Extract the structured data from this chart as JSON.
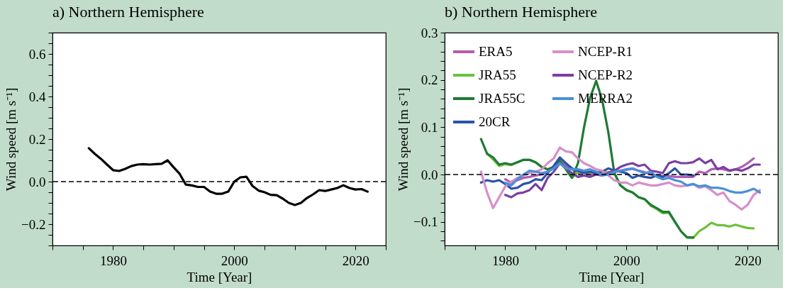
{
  "chart_data": [
    {
      "type": "line",
      "title": "a) Northern Hemisphere",
      "xlabel": "Time [Year]",
      "ylabel": "Wind speed [m s⁻¹]",
      "xlim": [
        1970,
        2025
      ],
      "xticks": [
        {
          "value": 1970,
          "label": null
        },
        {
          "value": 1975,
          "label": null
        },
        1980,
        {
          "value": 1985,
          "label": null
        },
        {
          "value": 1990,
          "label": null
        },
        {
          "value": 1995,
          "label": null
        },
        2000,
        {
          "value": 2005,
          "label": null
        },
        {
          "value": 2010,
          "label": null
        },
        {
          "value": 2015,
          "label": null
        },
        2020,
        {
          "value": 2025,
          "label": null
        }
      ],
      "ylim": [
        -0.3,
        0.7
      ],
      "yticks": [
        {
          "value": -0.3,
          "label": null
        },
        {
          "value": -0.25,
          "label": null
        },
        -0.2,
        {
          "value": -0.15,
          "label": null
        },
        {
          "value": -0.1,
          "label": null
        },
        {
          "value": -0.05,
          "label": null
        },
        {
          "value": 0,
          "label": "0.0"
        },
        {
          "value": 0.05,
          "label": null
        },
        {
          "value": 0.1,
          "label": null
        },
        {
          "value": 0.15,
          "label": null
        },
        0.2,
        {
          "value": 0.25,
          "label": null
        },
        {
          "value": 0.3,
          "label": null
        },
        {
          "value": 0.35,
          "label": null
        },
        0.4,
        {
          "value": 0.45,
          "label": null
        },
        {
          "value": 0.5,
          "label": null
        },
        {
          "value": 0.55,
          "label": null
        },
        0.6,
        {
          "value": 0.65,
          "label": null
        },
        {
          "value": 0.7,
          "label": null
        }
      ],
      "x": [
        1976,
        1977,
        1978,
        1979,
        1980,
        1981,
        1982,
        1983,
        1984,
        1985,
        1986,
        1987,
        1988,
        1989,
        1990,
        1991,
        1992,
        1993,
        1994,
        1995,
        1996,
        1997,
        1998,
        1999,
        2000,
        2001,
        2002,
        2003,
        2004,
        2005,
        2006,
        2007,
        2008,
        2009,
        2010,
        2011,
        2012,
        2013,
        2014,
        2015,
        2016,
        2017,
        2018,
        2019,
        2020,
        2021,
        2022
      ],
      "series": [
        {
          "color": "#000000",
          "values": [
            0.157,
            0.13,
            0.107,
            0.08,
            0.054,
            0.05,
            0.06,
            0.073,
            0.08,
            0.082,
            0.08,
            0.082,
            0.084,
            0.1,
            0.067,
            0.036,
            -0.014,
            -0.018,
            -0.025,
            -0.025,
            -0.047,
            -0.057,
            -0.057,
            -0.047,
            0.0,
            0.02,
            0.023,
            -0.02,
            -0.042,
            -0.05,
            -0.062,
            -0.064,
            -0.08,
            -0.1,
            -0.11,
            -0.1,
            -0.077,
            -0.06,
            -0.04,
            -0.044,
            -0.037,
            -0.03,
            -0.017,
            -0.03,
            -0.037,
            -0.035,
            -0.047
          ]
        }
      ],
      "ref_lines": [
        {
          "axis": "y",
          "value": 0,
          "color": "#000000",
          "line_style": "dashed"
        }
      ],
      "grid": false,
      "legend": false,
      "line_style": "solid"
    },
    {
      "type": "line",
      "title": "b) Northern Hemisphere",
      "xlabel": "Time [Year]",
      "ylabel": "Wind speed [m s⁻¹]",
      "xlim": [
        1970,
        2025
      ],
      "xticks": [
        {
          "value": 1970,
          "label": null
        },
        {
          "value": 1975,
          "label": null
        },
        1980,
        {
          "value": 1985,
          "label": null
        },
        {
          "value": 1990,
          "label": null
        },
        {
          "value": 1995,
          "label": null
        },
        2000,
        {
          "value": 2005,
          "label": null
        },
        {
          "value": 2010,
          "label": null
        },
        {
          "value": 2015,
          "label": null
        },
        2020,
        {
          "value": 2025,
          "label": null
        }
      ],
      "ylim": [
        -0.15,
        0.3
      ],
      "yticks": [
        {
          "value": -0.14,
          "label": null
        },
        {
          "value": -0.12,
          "label": null
        },
        -0.1,
        {
          "value": -0.08,
          "label": null
        },
        {
          "value": -0.06,
          "label": null
        },
        {
          "value": -0.04,
          "label": null
        },
        {
          "value": -0.02,
          "label": null
        },
        {
          "value": 0,
          "label": "0.0"
        },
        {
          "value": 0.02,
          "label": null
        },
        {
          "value": 0.04,
          "label": null
        },
        {
          "value": 0.06,
          "label": null
        },
        {
          "value": 0.08,
          "label": null
        },
        0.1,
        {
          "value": 0.12,
          "label": null
        },
        {
          "value": 0.14,
          "label": null
        },
        {
          "value": 0.16,
          "label": null
        },
        {
          "value": 0.18,
          "label": null
        },
        0.2,
        {
          "value": 0.22,
          "label": null
        },
        {
          "value": 0.24,
          "label": null
        },
        {
          "value": 0.26,
          "label": null
        },
        {
          "value": 0.28,
          "label": null
        },
        0.3
      ],
      "series": [
        {
          "name": "ERA5",
          "color": "#b35cb0",
          "x": [
            1980,
            1981,
            1982,
            1983,
            1984,
            1985,
            1986,
            1987,
            1988,
            1989,
            1990,
            1991,
            1992,
            1993,
            1994,
            1995,
            1996,
            1997,
            1998,
            1999,
            2000,
            2001,
            2002,
            2003,
            2004,
            2005,
            2006,
            2007,
            2008,
            2009,
            2010,
            2011,
            2012,
            2013,
            2014,
            2015,
            2016,
            2017,
            2018,
            2019,
            2020,
            2021
          ],
          "values": [
            -0.01,
            -0.017,
            -0.012,
            -0.007,
            -0.005,
            -0.002,
            0.0,
            0.006,
            0.016,
            0.029,
            0.018,
            0.011,
            0.003,
            0.005,
            0.0,
            0.002,
            0.0,
            0.005,
            0.005,
            0.008,
            0.01,
            0.012,
            0.008,
            0.005,
            0.0,
            -0.002,
            -0.003,
            -0.003,
            -0.005,
            -0.005,
            -0.005,
            -0.005,
            0.006,
            0.003,
            0.011,
            0.013,
            0.011,
            0.008,
            0.011,
            0.016,
            0.024,
            0.034
          ]
        },
        {
          "name": "JRA55",
          "color": "#6cc13a",
          "x": [
            1977,
            1978,
            1979,
            1980,
            1981,
            1982,
            1983,
            1984,
            1985,
            1986,
            1987,
            1988,
            1989,
            1990,
            1991,
            1992,
            1993,
            1994,
            1995,
            1996,
            1997,
            1998,
            1999,
            2000,
            2001,
            2002,
            2003,
            2004,
            2005,
            2006,
            2007,
            2008,
            2009,
            2010,
            2011,
            2012,
            2013,
            2014,
            2015,
            2016,
            2017,
            2018,
            2019,
            2020,
            2021
          ],
          "values": [
            0.044,
            0.032,
            0.018,
            0.022,
            0.02,
            0.026,
            0.031,
            0.031,
            0.026,
            0.016,
            0.011,
            0.016,
            0.029,
            0.011,
            -0.007,
            0.005,
            0.006,
            0.004,
            0.005,
            0.006,
            0.004,
            0.003,
            -0.023,
            -0.033,
            -0.038,
            -0.048,
            -0.052,
            -0.066,
            -0.073,
            -0.082,
            -0.081,
            -0.1,
            -0.12,
            -0.133,
            -0.134,
            -0.12,
            -0.112,
            -0.102,
            -0.107,
            -0.107,
            -0.11,
            -0.106,
            -0.11,
            -0.113,
            -0.114
          ]
        },
        {
          "name": "JRA55C",
          "color": "#1e7a35",
          "x": [
            1976,
            1977,
            1978,
            1979,
            1980,
            1981,
            1982,
            1983,
            1984,
            1985,
            1986,
            1987,
            1988,
            1989,
            1990,
            1991,
            1992,
            1993,
            1994,
            1995,
            1996,
            1997,
            1998,
            1999,
            2000,
            2001,
            2002,
            2003,
            2004,
            2005,
            2006,
            2007,
            2008,
            2009,
            2010,
            2011
          ],
          "values": [
            0.075,
            0.044,
            0.036,
            0.021,
            0.024,
            0.021,
            0.026,
            0.031,
            0.031,
            0.026,
            0.016,
            0.011,
            0.016,
            0.029,
            0.011,
            -0.007,
            0.024,
            0.1,
            0.162,
            0.198,
            0.157,
            0.09,
            0.003,
            -0.023,
            -0.033,
            -0.038,
            -0.048,
            -0.052,
            -0.064,
            -0.071,
            -0.079,
            -0.079,
            -0.1,
            -0.12,
            -0.133,
            -0.133
          ]
        },
        {
          "name": "20CR",
          "color": "#2a52a8",
          "x": [
            1976,
            1977,
            1978,
            1979,
            1980,
            1981,
            1982,
            1983,
            1984,
            1985,
            1986,
            1987,
            1988,
            1989,
            1990,
            1991,
            1992,
            1993,
            1994,
            1995,
            1996,
            1997,
            1998,
            1999,
            2000,
            2001,
            2002,
            2003,
            2004,
            2005,
            2006,
            2007,
            2008,
            2009,
            2010,
            2011
          ],
          "values": [
            -0.017,
            -0.012,
            -0.015,
            -0.012,
            -0.02,
            -0.03,
            -0.028,
            -0.02,
            -0.017,
            -0.01,
            -0.012,
            0.003,
            0.018,
            0.036,
            0.024,
            0.013,
            0.008,
            0.003,
            0.006,
            0.003,
            0.006,
            0.013,
            0.008,
            0.006,
            0.003,
            -0.007,
            -0.002,
            -0.005,
            -0.007,
            -0.002,
            -0.005,
            0.003,
            0.013,
            0.0,
            0.0,
            -0.002
          ]
        },
        {
          "name": "NCEP-R1",
          "color": "#d68fc9",
          "x": [
            1976,
            1977,
            1978,
            1979,
            1980,
            1981,
            1982,
            1983,
            1984,
            1985,
            1986,
            1987,
            1988,
            1989,
            1990,
            1991,
            1992,
            1993,
            1994,
            1995,
            1996,
            1997,
            1998,
            1999,
            2000,
            2001,
            2002,
            2003,
            2004,
            2005,
            2006,
            2007,
            2008,
            2009,
            2010,
            2011,
            2012,
            2013,
            2014,
            2015,
            2016,
            2017,
            2018,
            2019,
            2020,
            2021,
            2022
          ],
          "values": [
            0.006,
            -0.038,
            -0.071,
            -0.048,
            -0.025,
            -0.015,
            -0.007,
            -0.002,
            0.003,
            0.006,
            0.011,
            0.024,
            0.034,
            0.057,
            0.049,
            0.047,
            0.034,
            0.024,
            0.018,
            0.011,
            0.008,
            -0.002,
            -0.012,
            -0.017,
            -0.017,
            -0.023,
            -0.017,
            -0.02,
            -0.023,
            -0.023,
            -0.02,
            -0.017,
            -0.023,
            -0.025,
            -0.023,
            -0.02,
            -0.028,
            -0.025,
            -0.033,
            -0.043,
            -0.038,
            -0.056,
            -0.064,
            -0.074,
            -0.064,
            -0.043,
            -0.033
          ]
        },
        {
          "name": "NCEP-R2",
          "color": "#7b3fa3",
          "x": [
            1980,
            1981,
            1982,
            1983,
            1984,
            1985,
            1986,
            1987,
            1988,
            1989,
            1990,
            1991,
            1992,
            1993,
            1994,
            1995,
            1996,
            1997,
            1998,
            1999,
            2000,
            2001,
            2002,
            2003,
            2004,
            2005,
            2006,
            2007,
            2008,
            2009,
            2010,
            2011,
            2012,
            2013,
            2014,
            2015,
            2016,
            2017,
            2018,
            2019,
            2020,
            2021,
            2022
          ],
          "values": [
            -0.043,
            -0.048,
            -0.04,
            -0.038,
            -0.033,
            -0.02,
            -0.033,
            -0.007,
            0.006,
            0.024,
            0.013,
            0.003,
            -0.005,
            -0.002,
            -0.005,
            0.0,
            -0.002,
            0.003,
            0.008,
            0.016,
            0.021,
            0.024,
            0.018,
            0.021,
            0.008,
            0.006,
            0.003,
            0.024,
            0.028,
            0.024,
            0.024,
            0.026,
            0.034,
            0.024,
            0.031,
            0.011,
            0.016,
            0.008,
            0.011,
            0.008,
            0.013,
            0.021,
            0.021
          ]
        },
        {
          "name": "MERRA2",
          "color": "#4a8fd9",
          "x": [
            1980,
            1981,
            1982,
            1983,
            1984,
            1985,
            1986,
            1987,
            1988,
            1989,
            1990,
            1991,
            1992,
            1993,
            1994,
            1995,
            1996,
            1997,
            1998,
            1999,
            2000,
            2001,
            2002,
            2003,
            2004,
            2005,
            2006,
            2007,
            2008,
            2009,
            2010,
            2011,
            2012,
            2013,
            2014,
            2015,
            2016,
            2017,
            2018,
            2019,
            2020,
            2021,
            2022
          ],
          "values": [
            -0.017,
            -0.023,
            -0.01,
            0.0,
            0.008,
            0.006,
            0.003,
            0.006,
            0.013,
            0.024,
            0.013,
            0.011,
            0.011,
            0.008,
            0.011,
            0.006,
            -0.002,
            0.0,
            0.006,
            0.008,
            0.011,
            0.013,
            0.008,
            0.003,
            0.006,
            -0.005,
            -0.01,
            -0.007,
            -0.012,
            -0.015,
            -0.023,
            -0.02,
            -0.025,
            -0.023,
            -0.028,
            -0.028,
            -0.03,
            -0.035,
            -0.038,
            -0.038,
            -0.035,
            -0.03,
            -0.038
          ]
        }
      ],
      "ref_lines": [
        {
          "axis": "y",
          "value": 0,
          "color": "#000000",
          "line_style": "dashed"
        }
      ],
      "grid": false,
      "legend": "top left",
      "line_style": "solid"
    }
  ]
}
